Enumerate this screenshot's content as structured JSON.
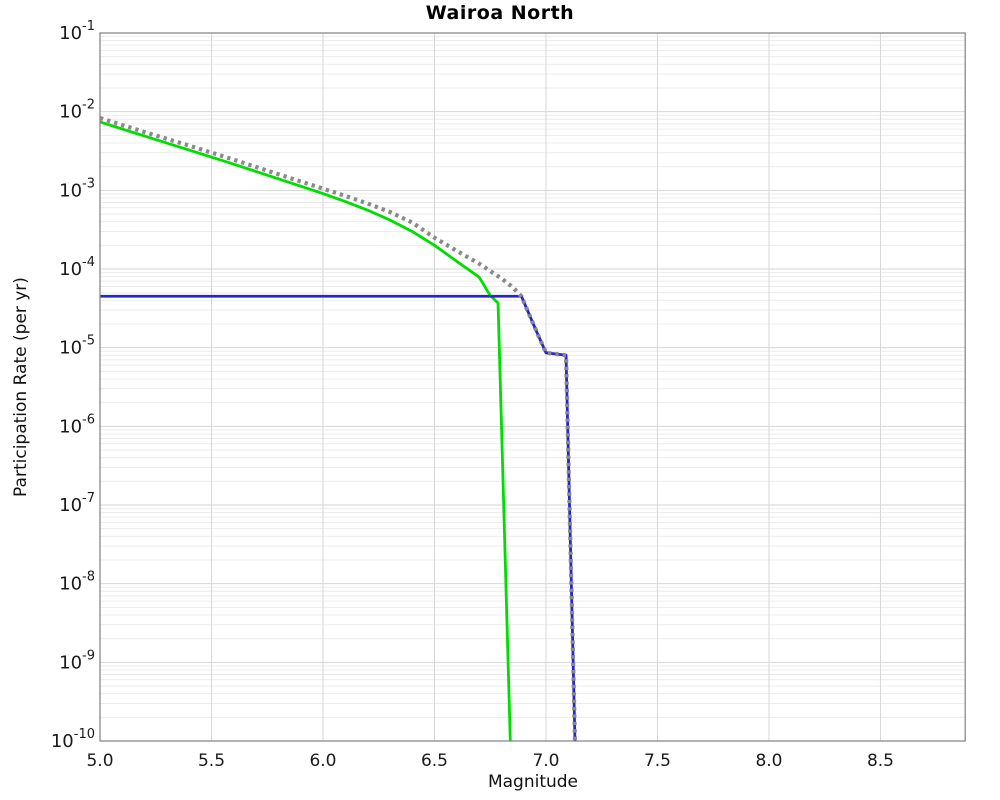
{
  "title": "Wairoa North",
  "chart_data": {
    "type": "line",
    "title": "Wairoa North",
    "xlabel": "Magnitude",
    "ylabel": "Participation Rate (per yr)",
    "xlim": [
      5.0,
      8.88
    ],
    "ylim": [
      1e-10,
      0.1
    ],
    "x_scale": "linear",
    "y_scale": "log",
    "grid": {
      "vertical_lines": [
        5.5,
        6.0,
        6.5,
        7.0,
        7.5,
        8.0,
        8.5
      ],
      "horizontal_major_exponents": [
        -2,
        -3,
        -4,
        -5,
        -6,
        -7,
        -8,
        -9
      ],
      "minor_log_mantissas": [
        2,
        3,
        4,
        5,
        6,
        7,
        8,
        9
      ]
    },
    "x_ticks": [
      {
        "value": 5.0,
        "label": "5.0"
      },
      {
        "value": 5.5,
        "label": "5.5"
      },
      {
        "value": 6.0,
        "label": "6.0"
      },
      {
        "value": 6.5,
        "label": "6.5"
      },
      {
        "value": 7.0,
        "label": "7.0"
      },
      {
        "value": 7.5,
        "label": "7.5"
      },
      {
        "value": 8.0,
        "label": "8.0"
      },
      {
        "value": 8.5,
        "label": "8.5"
      }
    ],
    "y_tick_exponents": [
      -1,
      -2,
      -3,
      -4,
      -5,
      -6,
      -7,
      -8,
      -9,
      -10
    ],
    "legend": "none",
    "series": [
      {
        "name": "green-solid-curve",
        "style": "solid",
        "color": "#00dd00",
        "width": 2.8,
        "points": [
          [
            5.0,
            0.0074
          ],
          [
            5.2,
            0.0049
          ],
          [
            5.4,
            0.00325
          ],
          [
            5.6,
            0.00215
          ],
          [
            5.8,
            0.0014
          ],
          [
            6.0,
            0.00091
          ],
          [
            6.1,
            0.00072
          ],
          [
            6.2,
            0.00056
          ],
          [
            6.3,
            0.00042
          ],
          [
            6.4,
            0.0003
          ],
          [
            6.5,
            0.0002
          ],
          [
            6.6,
            0.000125
          ],
          [
            6.7,
            7.9e-05
          ],
          [
            6.75,
            4.6e-05
          ],
          [
            6.785,
            3.7e-05
          ],
          [
            6.84,
            1e-10
          ]
        ]
      },
      {
        "name": "blue-solid-curve",
        "style": "solid",
        "color": "#2626d0",
        "width": 2.8,
        "points": [
          [
            5.0,
            4.5e-05
          ],
          [
            6.89,
            4.5e-05
          ],
          [
            6.95,
            1.8e-05
          ],
          [
            7.0,
            8.6e-06
          ],
          [
            7.09,
            8e-06
          ],
          [
            7.13,
            1e-10
          ]
        ]
      },
      {
        "name": "gray-dotted-curve",
        "style": "dotted",
        "color": "#8a8a8a",
        "width": 4.2,
        "dash": [
          3.3,
          4.1
        ],
        "points": [
          [
            5.0,
            0.0083
          ],
          [
            5.2,
            0.0055
          ],
          [
            5.4,
            0.0037
          ],
          [
            5.6,
            0.00245
          ],
          [
            5.8,
            0.0016
          ],
          [
            6.0,
            0.00105
          ],
          [
            6.1,
            0.00085
          ],
          [
            6.2,
            0.00068
          ],
          [
            6.3,
            0.00053
          ],
          [
            6.4,
            0.00039
          ],
          [
            6.5,
            0.00025
          ],
          [
            6.6,
            0.00017
          ],
          [
            6.7,
            0.000117
          ],
          [
            6.8,
            7.6e-05
          ],
          [
            6.85,
            5.9e-05
          ],
          [
            6.89,
            4.5e-05
          ],
          [
            6.95,
            1.8e-05
          ],
          [
            7.0,
            8.6e-06
          ],
          [
            7.09,
            8e-06
          ],
          [
            7.13,
            1e-10
          ]
        ]
      }
    ],
    "colors": {
      "background": "#ffffff",
      "frame": "#808080",
      "grid_major": "#d6d6d6",
      "grid_minor": "#ececec",
      "tick_label": "#1a1a1a"
    }
  }
}
